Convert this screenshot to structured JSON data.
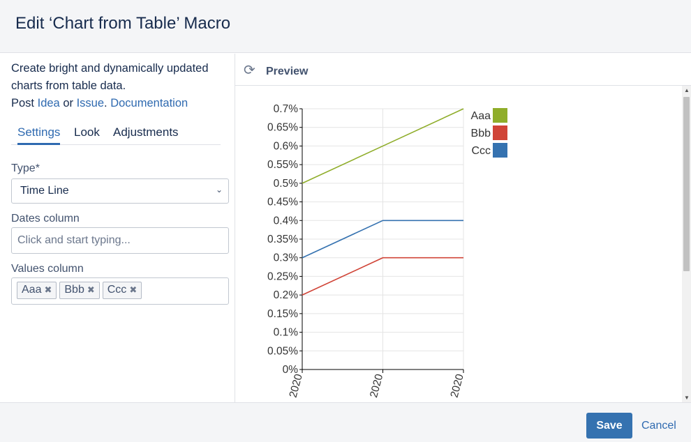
{
  "dialog": {
    "title": "Edit ‘Chart from Table’ Macro"
  },
  "description": {
    "line1": "Create bright and dynamically updated charts from table data.",
    "post_prefix": "Post ",
    "idea_link": "Idea",
    "or_text": " or ",
    "issue_link": "Issue",
    "period": ".",
    "documentation_link": "Documentation"
  },
  "tabs": [
    {
      "label": "Settings",
      "active": true
    },
    {
      "label": "Look",
      "active": false
    },
    {
      "label": "Adjustments",
      "active": false
    }
  ],
  "form": {
    "type_label": "Type*",
    "type_value": "Time Line",
    "dates_label": "Dates column",
    "dates_placeholder": "Click and start typing...",
    "values_label": "Values column",
    "values_tags": [
      "Aaa",
      "Bbb",
      "Ccc"
    ]
  },
  "preview": {
    "title": "Preview"
  },
  "chart_data": {
    "type": "line",
    "x": [
      "2020",
      "2020",
      "2020"
    ],
    "y_ticks": [
      "0%",
      "0.05%",
      "0.1%",
      "0.15%",
      "0.2%",
      "0.25%",
      "0.3%",
      "0.35%",
      "0.4%",
      "0.45%",
      "0.5%",
      "0.55%",
      "0.6%",
      "0.65%",
      "0.7%"
    ],
    "ylim": [
      0,
      0.7
    ],
    "grid": true,
    "legend": "right",
    "series": [
      {
        "name": "Aaa",
        "color": "#8fad2a",
        "values": [
          0.5,
          0.6,
          0.7
        ]
      },
      {
        "name": "Bbb",
        "color": "#d04437",
        "values": [
          0.2,
          0.3,
          0.3
        ]
      },
      {
        "name": "Ccc",
        "color": "#3572b0",
        "values": [
          0.3,
          0.4,
          0.4
        ]
      }
    ]
  },
  "footer": {
    "save_label": "Save",
    "cancel_label": "Cancel"
  }
}
